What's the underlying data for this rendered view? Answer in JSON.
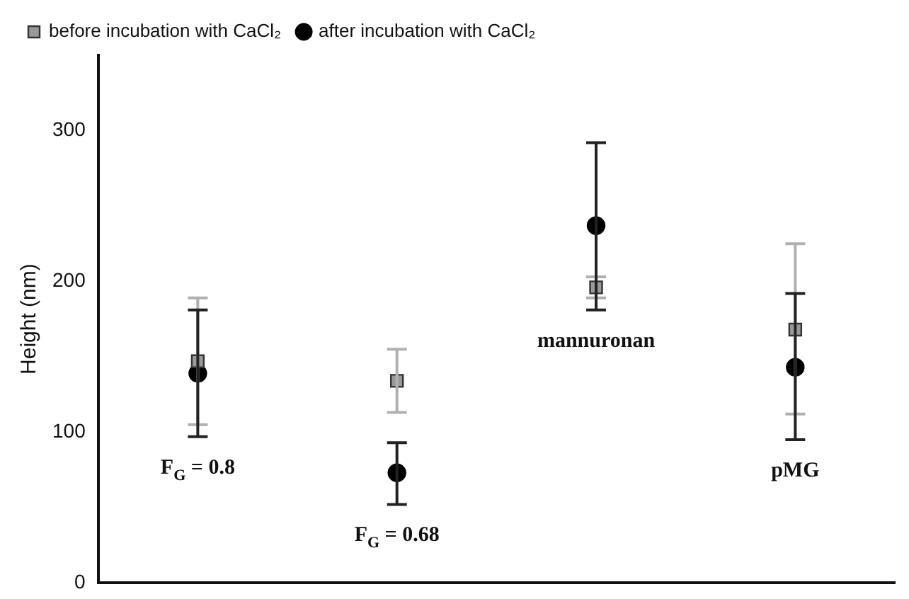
{
  "chart_data": {
    "type": "scatter",
    "ylabel": "Height (nm)",
    "categories": [
      null,
      null,
      null,
      null
    ],
    "ylim": [
      0,
      350
    ],
    "yticks": [
      0,
      100,
      200,
      300
    ],
    "grid": false,
    "legend": "top left",
    "tick_labels": "y",
    "series": [
      {
        "name": "before incubation with CaCl₂",
        "color": "#999999",
        "marker": "square",
        "values": [
          147,
          134,
          196,
          168
        ],
        "errors": [
          [
            105,
            189
          ],
          [
            113,
            155
          ],
          [
            189,
            203
          ],
          [
            112,
            225
          ]
        ]
      },
      {
        "name": "after incubation with CaCl₂",
        "color": "#000000",
        "marker": "circle",
        "values": [
          139,
          73,
          237,
          143
        ],
        "errors": [
          [
            97,
            181
          ],
          [
            52,
            93
          ],
          [
            181,
            292
          ],
          [
            95,
            192
          ]
        ]
      }
    ],
    "annotations": [
      "F$_{G}$ = 0.8",
      "F$_{G}$ = 0.68",
      "mannuronan",
      "pMG"
    ]
  }
}
